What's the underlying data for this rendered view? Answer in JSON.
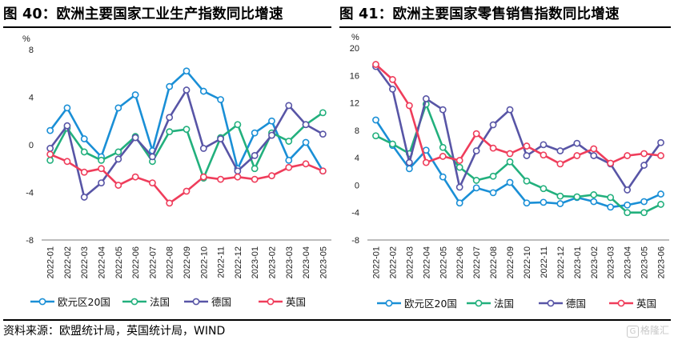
{
  "titles": {
    "left": "图 40：欧洲主要国家工业生产指数同比增速",
    "right": "图 41：欧洲主要国家零售销售指数同比增速"
  },
  "source": "资料来源：欧盟统计局，英国统计局，WIND",
  "watermark": "格隆汇",
  "colors": {
    "eurozone": "#1a8fd6",
    "france": "#22b07d",
    "germany": "#5855a6",
    "uk": "#ef3d5b"
  },
  "chart_data": [
    {
      "type": "line",
      "unit": "%",
      "categories": [
        "2022-01",
        "2022-02",
        "2022-03",
        "2022-04",
        "2022-05",
        "2022-06",
        "2022-07",
        "2022-08",
        "2022-09",
        "2022-10",
        "2022-11",
        "2022-12",
        "2023-01",
        "2023-02",
        "2023-03",
        "2023-04",
        "2023-05"
      ],
      "ylim": [
        -8,
        8
      ],
      "yticks": [
        -8,
        -4,
        0,
        4,
        8
      ],
      "legend_position": "bottom",
      "series": [
        {
          "key": "eurozone",
          "name": "欧元区20国",
          "values": [
            1.2,
            3.1,
            0.5,
            -1.0,
            3.1,
            4.2,
            -0.5,
            4.9,
            6.2,
            4.5,
            3.8,
            -2.0,
            1.0,
            2.0,
            -1.3,
            0.2,
            -2.2
          ]
        },
        {
          "key": "france",
          "name": "法国",
          "values": [
            -1.3,
            1.4,
            -0.6,
            -1.3,
            -0.6,
            0.7,
            -1.4,
            1.1,
            1.3,
            -2.8,
            0.6,
            1.7,
            -2.0,
            1.0,
            0.3,
            1.7,
            2.7
          ]
        },
        {
          "key": "germany",
          "name": "德国",
          "values": [
            -0.3,
            1.6,
            -4.4,
            -3.2,
            -1.2,
            0.6,
            -1.0,
            2.3,
            4.6,
            -0.3,
            0.5,
            -2.2,
            -0.9,
            0.8,
            3.3,
            1.7,
            0.9
          ]
        },
        {
          "key": "uk",
          "name": "英国",
          "values": [
            -0.8,
            -1.4,
            -2.3,
            -2.0,
            -3.4,
            -2.7,
            -3.2,
            -4.9,
            -3.9,
            -2.7,
            -2.9,
            -2.7,
            -2.9,
            -2.6,
            -1.9,
            -1.6,
            -2.2
          ]
        }
      ]
    },
    {
      "type": "line",
      "unit": "%",
      "categories": [
        "2022-01",
        "2022-02",
        "2022-03",
        "2022-04",
        "2022-05",
        "2022-06",
        "2022-07",
        "2022-08",
        "2022-09",
        "2022-10",
        "2022-11",
        "2022-12",
        "2023-01",
        "2023-02",
        "2023-03",
        "2023-04",
        "2023-05",
        "2023-06"
      ],
      "ylim": [
        -8,
        20
      ],
      "yticks": [
        -8,
        -4,
        0,
        4,
        8,
        12,
        16,
        20
      ],
      "legend_position": "bottom",
      "series": [
        {
          "key": "eurozone",
          "name": "欧元区20国",
          "values": [
            9.5,
            5.8,
            2.4,
            5.1,
            1.2,
            -2.6,
            -0.4,
            -1.1,
            0.4,
            -2.6,
            -2.5,
            -2.7,
            -1.8,
            -2.4,
            -3.2,
            -2.9,
            -2.4,
            -1.3
          ]
        },
        {
          "key": "france",
          "name": "法国",
          "values": [
            7.2,
            6.0,
            4.6,
            11.8,
            5.5,
            2.6,
            0.7,
            1.3,
            3.4,
            0.6,
            -0.5,
            -1.6,
            -1.7,
            -1.4,
            -1.8,
            -4.0,
            -4.0,
            -2.8
          ]
        },
        {
          "key": "germany",
          "name": "德国",
          "values": [
            17.3,
            14.0,
            3.3,
            12.6,
            11.0,
            -0.3,
            5.0,
            8.8,
            11.0,
            4.3,
            5.9,
            5.0,
            6.1,
            4.3,
            3.1,
            -0.7,
            2.9,
            6.2
          ]
        },
        {
          "key": "uk",
          "name": "英国",
          "values": [
            17.6,
            15.4,
            11.6,
            3.3,
            4.2,
            3.6,
            7.5,
            5.4,
            4.6,
            5.7,
            4.4,
            3.1,
            4.3,
            5.3,
            3.2,
            4.3,
            4.6,
            4.3
          ]
        }
      ]
    }
  ]
}
